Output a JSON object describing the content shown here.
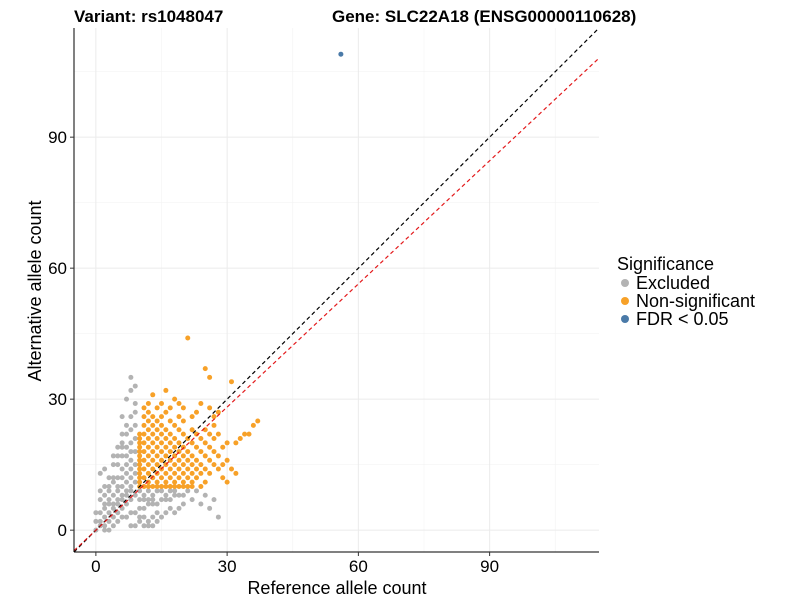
{
  "chart_data": {
    "type": "scatter",
    "title_left": "Variant: rs1048047",
    "title_right": "Gene: SLC22A18 (ENSG00000110628)",
    "xlabel": "Reference allele count",
    "ylabel": "Alternative allele count",
    "xlim": [
      -5,
      115
    ],
    "ylim": [
      -5,
      115
    ],
    "xticks": [
      0,
      30,
      60,
      90
    ],
    "yticks": [
      0,
      30,
      60,
      90
    ],
    "grid": true,
    "legend": {
      "title": "Significance",
      "placement": "right",
      "entries": [
        {
          "label": "Excluded",
          "color": "#b3b3b3"
        },
        {
          "label": "Non-significant",
          "color": "#f7a128"
        },
        {
          "label": "FDR < 0.05",
          "color": "#4a7aa8"
        }
      ]
    },
    "reference_lines": [
      {
        "slope": 1.0,
        "intercept": 0,
        "color": "#000000",
        "style": "dashed"
      },
      {
        "slope": 0.94,
        "intercept": 0,
        "color": "#e31a1c",
        "style": "dashed"
      }
    ],
    "series": [
      {
        "name": "Excluded",
        "color": "#b3b3b3",
        "points": [
          [
            0,
            0
          ],
          [
            1,
            1
          ],
          [
            1,
            2
          ],
          [
            2,
            1
          ],
          [
            2,
            3
          ],
          [
            3,
            2
          ],
          [
            3,
            4
          ],
          [
            4,
            3
          ],
          [
            4,
            5
          ],
          [
            5,
            4
          ],
          [
            5,
            6
          ],
          [
            6,
            5
          ],
          [
            6,
            7
          ],
          [
            7,
            6
          ],
          [
            7,
            8
          ],
          [
            8,
            7
          ],
          [
            8,
            9
          ],
          [
            9,
            8
          ],
          [
            1,
            4
          ],
          [
            2,
            6
          ],
          [
            3,
            7
          ],
          [
            4,
            8
          ],
          [
            5,
            9
          ],
          [
            6,
            10
          ],
          [
            7,
            11
          ],
          [
            8,
            12
          ],
          [
            9,
            13
          ],
          [
            3,
            9
          ],
          [
            4,
            11
          ],
          [
            5,
            12
          ],
          [
            6,
            14
          ],
          [
            7,
            15
          ],
          [
            8,
            16
          ],
          [
            9,
            18
          ],
          [
            5,
            15
          ],
          [
            6,
            17
          ],
          [
            7,
            19
          ],
          [
            8,
            20
          ],
          [
            9,
            21
          ],
          [
            6,
            22
          ],
          [
            7,
            24
          ],
          [
            8,
            26
          ],
          [
            9,
            27
          ],
          [
            7,
            30
          ],
          [
            8,
            32
          ],
          [
            9,
            33
          ],
          [
            8,
            35
          ],
          [
            9,
            29
          ],
          [
            6,
            26
          ],
          [
            1,
            13
          ],
          [
            2,
            14
          ],
          [
            0,
            4
          ],
          [
            0,
            2
          ],
          [
            2,
            0
          ],
          [
            3,
            0
          ],
          [
            4,
            1
          ],
          [
            5,
            2
          ],
          [
            6,
            3
          ],
          [
            7,
            3
          ],
          [
            8,
            4
          ],
          [
            9,
            4
          ],
          [
            10,
            5
          ],
          [
            11,
            5
          ],
          [
            12,
            6
          ],
          [
            13,
            6
          ],
          [
            14,
            6
          ],
          [
            15,
            7
          ],
          [
            16,
            7
          ],
          [
            17,
            7
          ],
          [
            18,
            8
          ],
          [
            19,
            8
          ],
          [
            20,
            8
          ],
          [
            21,
            9
          ],
          [
            22,
            7
          ],
          [
            23,
            9
          ],
          [
            24,
            6
          ],
          [
            25,
            8
          ],
          [
            27,
            7
          ],
          [
            28,
            3
          ],
          [
            26,
            5
          ],
          [
            10,
            2
          ],
          [
            11,
            3
          ],
          [
            12,
            2
          ],
          [
            13,
            3
          ],
          [
            14,
            4
          ],
          [
            15,
            3
          ],
          [
            16,
            4
          ],
          [
            17,
            5
          ],
          [
            18,
            4
          ],
          [
            19,
            5
          ],
          [
            20,
            6
          ],
          [
            15,
            9
          ],
          [
            16,
            8
          ],
          [
            17,
            9
          ],
          [
            18,
            9
          ],
          [
            3,
            10
          ],
          [
            4,
            12
          ],
          [
            5,
            10
          ],
          [
            6,
            12
          ],
          [
            7,
            13
          ],
          [
            8,
            14
          ],
          [
            9,
            15
          ],
          [
            10,
            9
          ],
          [
            11,
            8
          ],
          [
            12,
            9
          ],
          [
            13,
            8
          ],
          [
            14,
            9
          ],
          [
            2,
            8
          ],
          [
            3,
            6
          ],
          [
            4,
            6
          ],
          [
            5,
            7
          ],
          [
            6,
            8
          ],
          [
            7,
            9
          ],
          [
            8,
            10
          ],
          [
            9,
            11
          ],
          [
            10,
            7
          ],
          [
            11,
            7
          ],
          [
            12,
            7
          ],
          [
            13,
            7
          ],
          [
            2,
            10
          ],
          [
            3,
            12
          ],
          [
            1,
            7
          ],
          [
            2,
            5
          ],
          [
            1,
            9
          ],
          [
            4,
            15
          ],
          [
            5,
            17
          ],
          [
            6,
            19
          ],
          [
            7,
            17
          ],
          [
            8,
            18
          ],
          [
            9,
            24
          ],
          [
            8,
            23
          ],
          [
            7,
            22
          ],
          [
            6,
            20
          ],
          [
            5,
            19
          ],
          [
            4,
            17
          ],
          [
            10,
            3
          ],
          [
            11,
            1
          ],
          [
            12,
            1
          ],
          [
            13,
            1
          ],
          [
            14,
            2
          ],
          [
            9,
            1
          ],
          [
            8,
            1
          ]
        ]
      },
      {
        "name": "Non-significant",
        "color": "#f7a128",
        "points": [
          [
            10,
            10
          ],
          [
            10,
            11
          ],
          [
            10,
            12
          ],
          [
            10,
            13
          ],
          [
            10,
            14
          ],
          [
            10,
            15
          ],
          [
            10,
            16
          ],
          [
            10,
            17
          ],
          [
            10,
            18
          ],
          [
            10,
            19
          ],
          [
            10,
            20
          ],
          [
            10,
            21
          ],
          [
            10,
            22
          ],
          [
            11,
            10
          ],
          [
            11,
            12
          ],
          [
            11,
            14
          ],
          [
            11,
            16
          ],
          [
            11,
            18
          ],
          [
            11,
            20
          ],
          [
            11,
            22
          ],
          [
            11,
            24
          ],
          [
            11,
            26
          ],
          [
            11,
            28
          ],
          [
            12,
            10
          ],
          [
            12,
            11
          ],
          [
            12,
            13
          ],
          [
            12,
            15
          ],
          [
            12,
            17
          ],
          [
            12,
            19
          ],
          [
            12,
            21
          ],
          [
            12,
            23
          ],
          [
            12,
            25
          ],
          [
            12,
            27
          ],
          [
            12,
            29
          ],
          [
            13,
            10
          ],
          [
            13,
            12
          ],
          [
            13,
            14
          ],
          [
            13,
            16
          ],
          [
            13,
            18
          ],
          [
            13,
            20
          ],
          [
            13,
            22
          ],
          [
            13,
            24
          ],
          [
            13,
            26
          ],
          [
            13,
            31
          ],
          [
            14,
            10
          ],
          [
            14,
            11
          ],
          [
            14,
            13
          ],
          [
            14,
            15
          ],
          [
            14,
            17
          ],
          [
            14,
            19
          ],
          [
            14,
            21
          ],
          [
            14,
            23
          ],
          [
            14,
            25
          ],
          [
            14,
            28
          ],
          [
            15,
            10
          ],
          [
            15,
            12
          ],
          [
            15,
            14
          ],
          [
            15,
            16
          ],
          [
            15,
            18
          ],
          [
            15,
            20
          ],
          [
            15,
            22
          ],
          [
            15,
            24
          ],
          [
            15,
            26
          ],
          [
            15,
            29
          ],
          [
            16,
            10
          ],
          [
            16,
            11
          ],
          [
            16,
            13
          ],
          [
            16,
            15
          ],
          [
            16,
            17
          ],
          [
            16,
            19
          ],
          [
            16,
            21
          ],
          [
            16,
            23
          ],
          [
            16,
            27
          ],
          [
            16,
            32
          ],
          [
            17,
            10
          ],
          [
            17,
            12
          ],
          [
            17,
            14
          ],
          [
            17,
            16
          ],
          [
            17,
            18
          ],
          [
            17,
            20
          ],
          [
            17,
            22
          ],
          [
            17,
            25
          ],
          [
            17,
            28
          ],
          [
            18,
            10
          ],
          [
            18,
            11
          ],
          [
            18,
            13
          ],
          [
            18,
            15
          ],
          [
            18,
            17
          ],
          [
            18,
            19
          ],
          [
            18,
            21
          ],
          [
            18,
            24
          ],
          [
            18,
            30
          ],
          [
            19,
            10
          ],
          [
            19,
            12
          ],
          [
            19,
            14
          ],
          [
            19,
            16
          ],
          [
            19,
            18
          ],
          [
            19,
            20
          ],
          [
            19,
            23
          ],
          [
            19,
            26
          ],
          [
            19,
            29
          ],
          [
            20,
            10
          ],
          [
            20,
            11
          ],
          [
            20,
            13
          ],
          [
            20,
            15
          ],
          [
            20,
            17
          ],
          [
            20,
            19
          ],
          [
            20,
            22
          ],
          [
            20,
            25
          ],
          [
            20,
            28
          ],
          [
            21,
            10
          ],
          [
            21,
            12
          ],
          [
            21,
            14
          ],
          [
            21,
            16
          ],
          [
            21,
            18
          ],
          [
            21,
            21
          ],
          [
            21,
            44
          ],
          [
            22,
            10
          ],
          [
            22,
            11
          ],
          [
            22,
            13
          ],
          [
            22,
            15
          ],
          [
            22,
            17
          ],
          [
            22,
            20
          ],
          [
            22,
            23
          ],
          [
            22,
            26
          ],
          [
            23,
            12
          ],
          [
            23,
            14
          ],
          [
            23,
            16
          ],
          [
            23,
            19
          ],
          [
            23,
            22
          ],
          [
            23,
            27
          ],
          [
            24,
            10
          ],
          [
            24,
            13
          ],
          [
            24,
            15
          ],
          [
            24,
            18
          ],
          [
            24,
            21
          ],
          [
            24,
            29
          ],
          [
            25,
            11
          ],
          [
            25,
            14
          ],
          [
            25,
            17
          ],
          [
            25,
            20
          ],
          [
            25,
            23
          ],
          [
            25,
            37
          ],
          [
            26,
            13
          ],
          [
            26,
            16
          ],
          [
            26,
            19
          ],
          [
            26,
            22
          ],
          [
            26,
            28
          ],
          [
            26,
            35
          ],
          [
            27,
            15
          ],
          [
            27,
            18
          ],
          [
            27,
            21
          ],
          [
            27,
            24
          ],
          [
            27,
            26
          ],
          [
            28,
            14
          ],
          [
            28,
            17
          ],
          [
            28,
            22
          ],
          [
            28,
            27
          ],
          [
            29,
            15
          ],
          [
            29,
            19
          ],
          [
            29,
            12
          ],
          [
            30,
            16
          ],
          [
            30,
            20
          ],
          [
            30,
            11
          ],
          [
            31,
            34
          ],
          [
            32,
            13
          ],
          [
            32,
            20
          ],
          [
            33,
            21
          ],
          [
            34,
            22
          ],
          [
            35,
            22
          ],
          [
            36,
            24
          ],
          [
            37,
            25
          ],
          [
            31,
            14
          ]
        ]
      },
      {
        "name": "FDR < 0.05",
        "color": "#4a7aa8",
        "points": [
          [
            56,
            109
          ]
        ]
      }
    ]
  }
}
